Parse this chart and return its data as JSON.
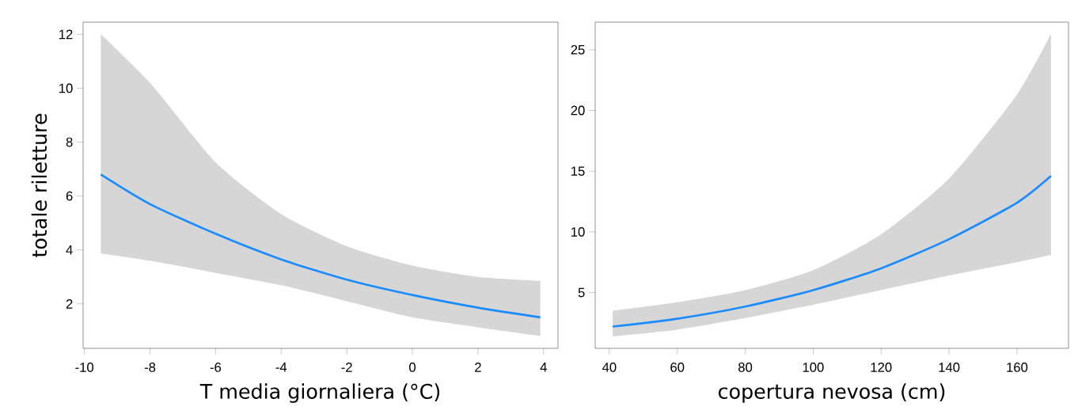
{
  "chart_data": [
    {
      "type": "line",
      "xlabel": "T media giornaliera (°C)",
      "ylabel": "totale riletture",
      "xlim": [
        -10.04,
        4.44
      ],
      "ylim": [
        0.35,
        12.45
      ],
      "xticks": [
        -10,
        -8,
        -6,
        -4,
        -2,
        0,
        2,
        4
      ],
      "yticks": [
        2,
        4,
        6,
        8,
        10,
        12
      ],
      "grid": false,
      "x": [
        -9.5,
        -8,
        -6,
        -4,
        -2,
        0,
        2,
        3.9
      ],
      "series": [
        {
          "color": "#1a8cff",
          "values": [
            6.8,
            5.7,
            4.6,
            3.65,
            2.9,
            2.33,
            1.86,
            1.5
          ],
          "lower": [
            3.87,
            3.6,
            3.15,
            2.69,
            2.1,
            1.5,
            1.13,
            0.81
          ],
          "upper": [
            12.0,
            10.2,
            7.25,
            5.33,
            4.14,
            3.42,
            3.0,
            2.85
          ]
        }
      ]
    },
    {
      "type": "line",
      "xlabel": "copertura nevosa (cm)",
      "xlim": [
        35.84,
        175.16
      ],
      "ylim": [
        0.41,
        27.27
      ],
      "xticks": [
        40,
        60,
        80,
        100,
        120,
        140,
        160
      ],
      "yticks": [
        5,
        10,
        15,
        20,
        25
      ],
      "grid": false,
      "x": [
        41,
        60,
        80,
        100,
        120,
        140,
        160,
        170
      ],
      "series": [
        {
          "color": "#1a8cff",
          "values": [
            2.2,
            2.85,
            3.85,
            5.2,
            7.0,
            9.4,
            12.4,
            14.6
          ],
          "lower": [
            1.4,
            1.95,
            2.9,
            4.0,
            5.2,
            6.4,
            7.5,
            8.1
          ],
          "upper": [
            3.5,
            4.2,
            5.2,
            6.85,
            9.8,
            14.4,
            21.3,
            26.3
          ]
        }
      ]
    }
  ]
}
